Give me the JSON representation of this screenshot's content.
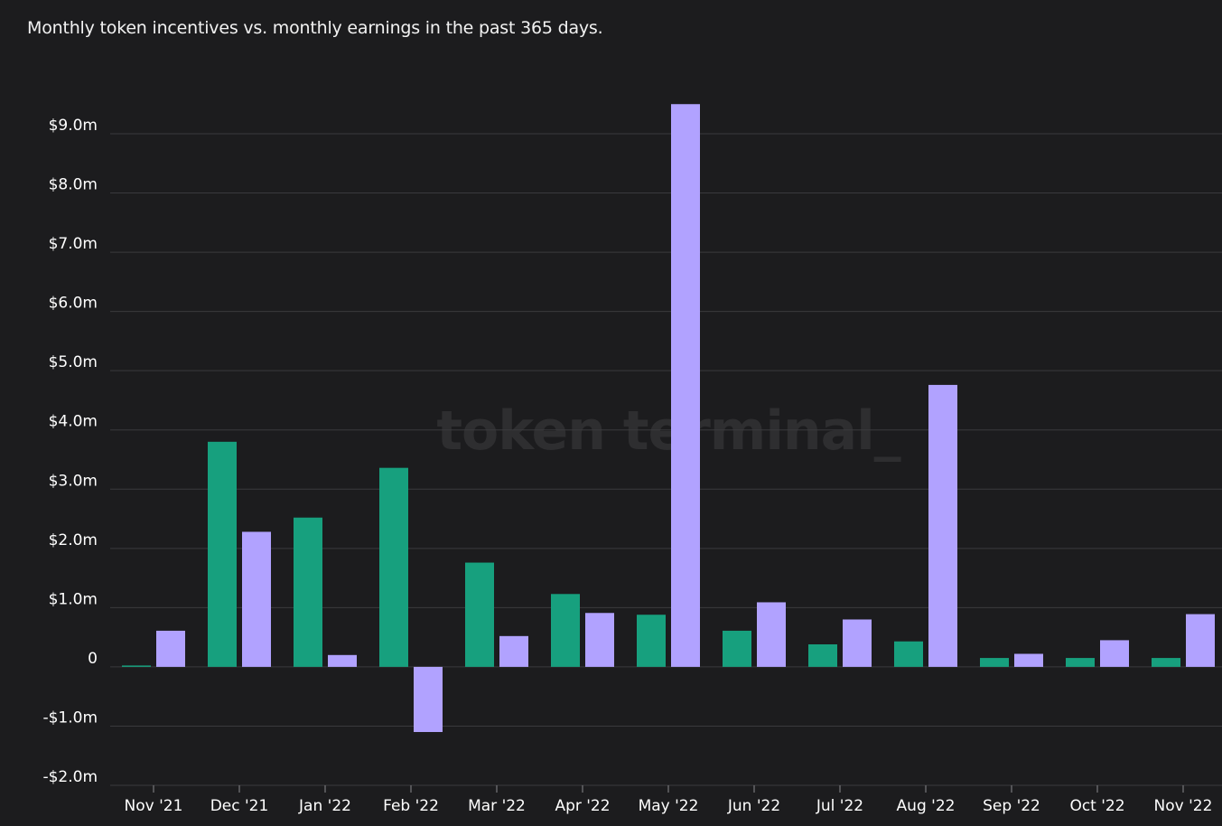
{
  "title": "Monthly token incentives vs. monthly earnings in the past 365 days.",
  "watermark": "token terminal_",
  "colors": {
    "background": "#1c1c1e",
    "grid": "#3a3a3d",
    "incentives": "#17a07e",
    "earnings": "#b1a2ff"
  },
  "chart_data": {
    "type": "bar",
    "title": "Monthly token incentives vs. monthly earnings in the past 365 days.",
    "xlabel": "",
    "ylabel": "",
    "ylim": [
      -2000000,
      9000000
    ],
    "y_ticks": [
      {
        "value": 9000000,
        "label": "$9.0m"
      },
      {
        "value": 8000000,
        "label": "$8.0m"
      },
      {
        "value": 7000000,
        "label": "$7.0m"
      },
      {
        "value": 6000000,
        "label": "$6.0m"
      },
      {
        "value": 5000000,
        "label": "$5.0m"
      },
      {
        "value": 4000000,
        "label": "$4.0m"
      },
      {
        "value": 3000000,
        "label": "$3.0m"
      },
      {
        "value": 2000000,
        "label": "$2.0m"
      },
      {
        "value": 1000000,
        "label": "$1.0m"
      },
      {
        "value": 0,
        "label": "0"
      },
      {
        "value": -1000000,
        "label": "-$1.0m"
      },
      {
        "value": -2000000,
        "label": "-$2.0m"
      }
    ],
    "categories": [
      "Nov '21",
      "Dec '21",
      "Jan '22",
      "Feb '22",
      "Mar '22",
      "Apr '22",
      "May '22",
      "Jun '22",
      "Jul '22",
      "Aug '22",
      "Sep '22",
      "Oct '22",
      "Nov '22"
    ],
    "grid": true,
    "legend": "none",
    "series": [
      {
        "color": "#17a07e",
        "values": [
          20000,
          3800000,
          2520000,
          3360000,
          1760000,
          1230000,
          880000,
          610000,
          380000,
          430000,
          150000,
          150000,
          150000
        ]
      },
      {
        "color": "#b1a2ff",
        "values": [
          610000,
          2280000,
          200000,
          -1100000,
          520000,
          910000,
          9500000,
          1090000,
          800000,
          4760000,
          220000,
          450000,
          890000
        ]
      }
    ]
  }
}
